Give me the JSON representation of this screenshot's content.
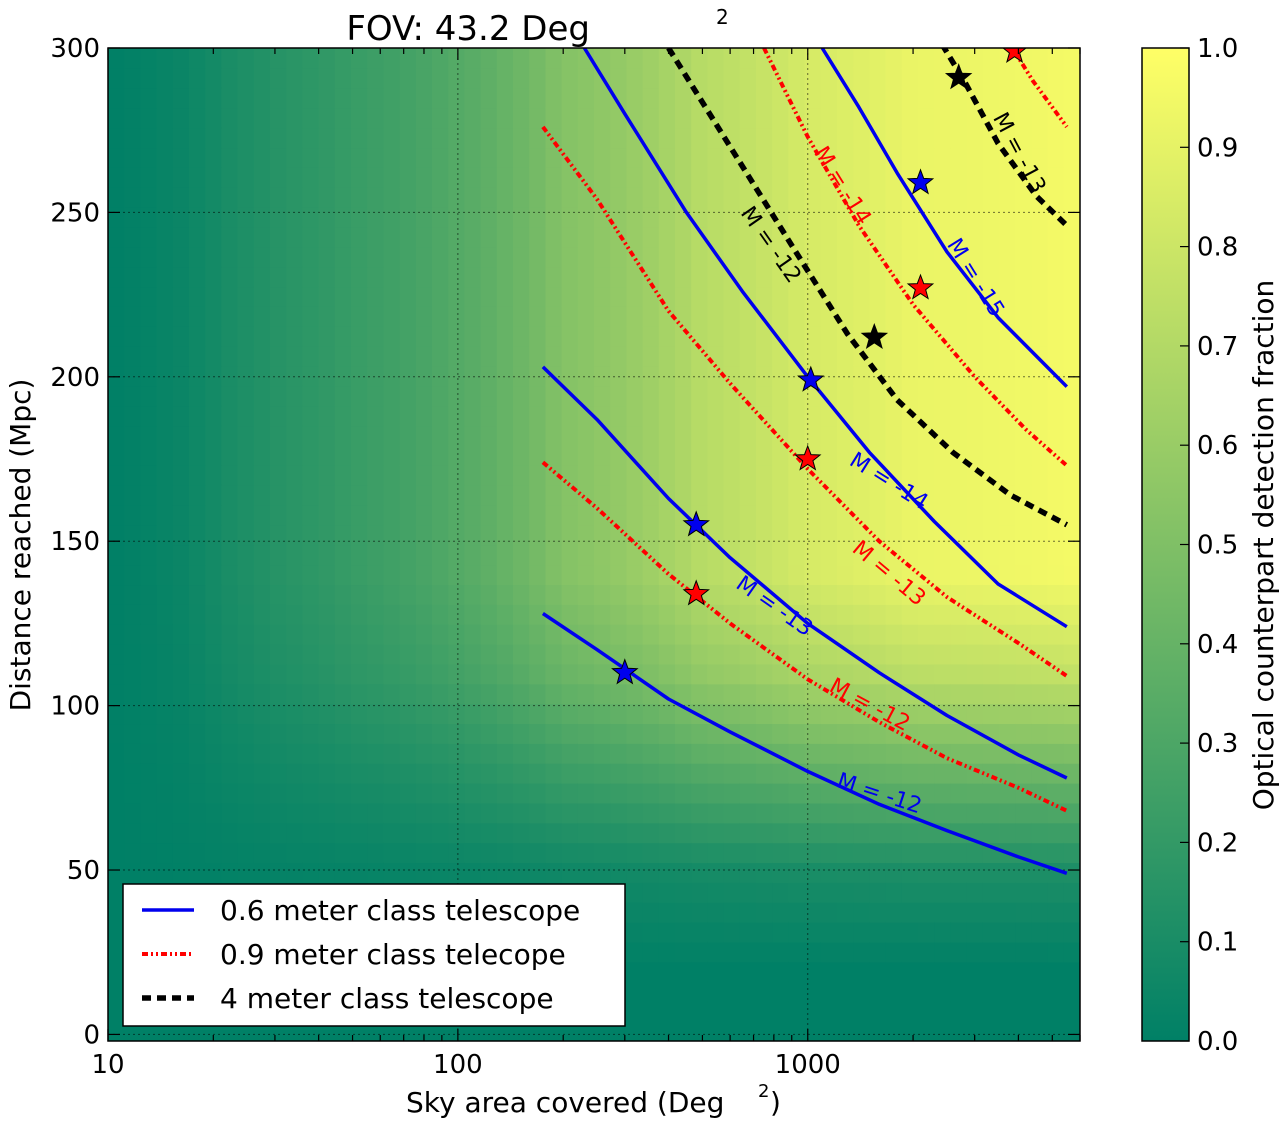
{
  "chart_data": {
    "type": "line",
    "title": "FOV: 43.2 Deg",
    "title_superscript": "2",
    "xlabel": "Sky area covered (Deg",
    "xlabel_superscript": "2",
    "xlabel_suffix": ")",
    "ylabel": "Distance reached (Mpc)",
    "xscale": "log",
    "xlim": [
      10,
      6000
    ],
    "ylim": [
      -2,
      300
    ],
    "x_ticks": [
      {
        "value": 10,
        "label": "10"
      },
      {
        "value": 100,
        "label": "100"
      },
      {
        "value": 1000,
        "label": "1000"
      }
    ],
    "y_ticks": [
      {
        "value": 0,
        "label": "0"
      },
      {
        "value": 50,
        "label": "50"
      },
      {
        "value": 100,
        "label": "100"
      },
      {
        "value": 150,
        "label": "150"
      },
      {
        "value": 200,
        "label": "200"
      },
      {
        "value": 250,
        "label": "250"
      },
      {
        "value": 300,
        "label": "300"
      }
    ],
    "grid": true,
    "colorbar": {
      "label": "Optical counterpart detection fraction",
      "range": [
        0.0,
        1.0
      ],
      "colors": [
        "#008066",
        "#ffff66"
      ],
      "ticks": [
        {
          "value": 0.0,
          "label": "0.0"
        },
        {
          "value": 0.1,
          "label": "0.1"
        },
        {
          "value": 0.2,
          "label": "0.2"
        },
        {
          "value": 0.3,
          "label": "0.3"
        },
        {
          "value": 0.4,
          "label": "0.4"
        },
        {
          "value": 0.5,
          "label": "0.5"
        },
        {
          "value": 0.6,
          "label": "0.6"
        },
        {
          "value": 0.7,
          "label": "0.7"
        },
        {
          "value": 0.8,
          "label": "0.8"
        },
        {
          "value": 0.9,
          "label": "0.9"
        },
        {
          "value": 1.0,
          "label": "1.0"
        }
      ]
    },
    "background_fraction_by_x": [
      {
        "x": 10,
        "v": 0.0
      },
      {
        "x": 16,
        "v": 0.04
      },
      {
        "x": 22,
        "v": 0.1
      },
      {
        "x": 30,
        "v": 0.15
      },
      {
        "x": 50,
        "v": 0.22
      },
      {
        "x": 100,
        "v": 0.33
      },
      {
        "x": 200,
        "v": 0.52
      },
      {
        "x": 500,
        "v": 0.72
      },
      {
        "x": 1000,
        "v": 0.84
      },
      {
        "x": 2000,
        "v": 0.92
      },
      {
        "x": 6000,
        "v": 0.96
      }
    ],
    "background_fraction_by_y": [
      {
        "y": -2,
        "s": 0.0
      },
      {
        "y": 20,
        "s": 0.0
      },
      {
        "y": 50,
        "s": 0.12
      },
      {
        "y": 80,
        "s": 0.45
      },
      {
        "y": 110,
        "s": 0.8
      },
      {
        "y": 140,
        "s": 1.0
      },
      {
        "y": 300,
        "s": 1.0
      }
    ],
    "legend": {
      "position": "lower-left",
      "entries": [
        {
          "label": "0.6 meter class telescope",
          "color": "#0000ee",
          "style": "solid"
        },
        {
          "label": "0.9 meter class telecope",
          "color": "#ff0000",
          "style": "dashdotdot"
        },
        {
          "label": "4 meter class telescope",
          "color": "#000000",
          "style": "dashed"
        }
      ]
    },
    "series": [
      {
        "telescope": "0.6 meter class telescope",
        "color": "#0000ee",
        "style": "solid",
        "label": "M = -12",
        "x": [
          175,
          250,
          400,
          600,
          1000,
          1600,
          2500,
          4000,
          5500
        ],
        "y": [
          128,
          117,
          102,
          92,
          80,
          70,
          62,
          54,
          49
        ],
        "label_x": 1600,
        "label_y": 73,
        "label_angle": 18,
        "star": {
          "x": 300,
          "y": 110
        }
      },
      {
        "telescope": "0.6 meter class telescope",
        "color": "#0000ee",
        "style": "solid",
        "label": "M = -13",
        "x": [
          175,
          250,
          400,
          600,
          1000,
          1600,
          2500,
          4000,
          5500
        ],
        "y": [
          203,
          187,
          163,
          145,
          125,
          110,
          97,
          85,
          78
        ],
        "label_x": 800,
        "label_y": 130,
        "label_angle": 35,
        "star": {
          "x": 480,
          "y": 155
        }
      },
      {
        "telescope": "0.6 meter class telescope",
        "color": "#0000ee",
        "style": "solid",
        "label": "M = -14",
        "x": [
          230,
          300,
          450,
          650,
          1000,
          1500,
          2300,
          3500,
          5500
        ],
        "y": [
          300,
          280,
          250,
          226,
          200,
          177,
          156,
          137,
          124
        ],
        "label_x": 1700,
        "label_y": 168,
        "label_angle": 32,
        "star": {
          "x": 1020,
          "y": 199
        }
      },
      {
        "telescope": "0.6 meter class telescope",
        "color": "#0000ee",
        "style": "solid",
        "label": "M = -15",
        "x": [
          1100,
          1400,
          1800,
          2500,
          3500,
          5500
        ],
        "y": [
          300,
          282,
          262,
          238,
          218,
          197
        ],
        "label_x": 3000,
        "label_y": 230,
        "label_angle": 58,
        "star": {
          "x": 2100,
          "y": 259
        }
      },
      {
        "telescope": "0.9 meter class telecope",
        "color": "#ff0000",
        "style": "dashdotdot",
        "label": "M = -12",
        "x": [
          175,
          250,
          400,
          600,
          1000,
          1600,
          2500,
          4000,
          5500
        ],
        "y": [
          174,
          160,
          140,
          125,
          108,
          95,
          84,
          75,
          68
        ],
        "label_x": 1500,
        "label_y": 100,
        "label_angle": 28,
        "star": {
          "x": 480,
          "y": 134
        }
      },
      {
        "telescope": "0.9 meter class telecope",
        "color": "#ff0000",
        "style": "dashdotdot",
        "label": "M = -13",
        "x": [
          175,
          250,
          400,
          600,
          1000,
          1600,
          2500,
          4000,
          5500
        ],
        "y": [
          276,
          254,
          220,
          198,
          172,
          150,
          133,
          119,
          109
        ],
        "label_x": 1700,
        "label_y": 140,
        "label_angle": 40,
        "star": {
          "x": 1000,
          "y": 175
        }
      },
      {
        "telescope": "0.9 meter class telecope",
        "color": "#ff0000",
        "style": "dashdotdot",
        "label": "M = -14",
        "x": [
          750,
          1000,
          1400,
          2000,
          3000,
          4200,
          5500
        ],
        "y": [
          300,
          273,
          246,
          222,
          200,
          184,
          173
        ],
        "label_x": 1250,
        "label_y": 258,
        "label_angle": 58,
        "star": {
          "x": 2100,
          "y": 227
        }
      },
      {
        "telescope": "0.9 meter class telecope",
        "color": "#ff0000",
        "style": "dashdotdot",
        "label": "",
        "x": [
          3600,
          4400,
          5500
        ],
        "y": [
          305,
          290,
          276
        ],
        "label_x": null,
        "label_y": null,
        "label_angle": 0,
        "star": {
          "x": 3900,
          "y": 299
        }
      },
      {
        "telescope": "4 meter class telescope",
        "color": "#000000",
        "style": "dashed",
        "label": "M = -12",
        "x": [
          400,
          600,
          900,
          1300,
          1800,
          2600,
          3800,
          5500
        ],
        "y": [
          300,
          270,
          240,
          213,
          193,
          177,
          164,
          155
        ],
        "label_x": 780,
        "label_y": 240,
        "label_angle": 55,
        "star": {
          "x": 1550,
          "y": 212
        }
      },
      {
        "telescope": "4 meter class telescope",
        "color": "#000000",
        "style": "dashed",
        "label": "M = -13",
        "x": [
          2300,
          2800,
          3500,
          4500,
          5500
        ],
        "y": [
          305,
          290,
          271,
          255,
          246
        ],
        "label_x": 4000,
        "label_y": 268,
        "label_angle": 62,
        "star": {
          "x": 2700,
          "y": 291
        }
      }
    ]
  }
}
